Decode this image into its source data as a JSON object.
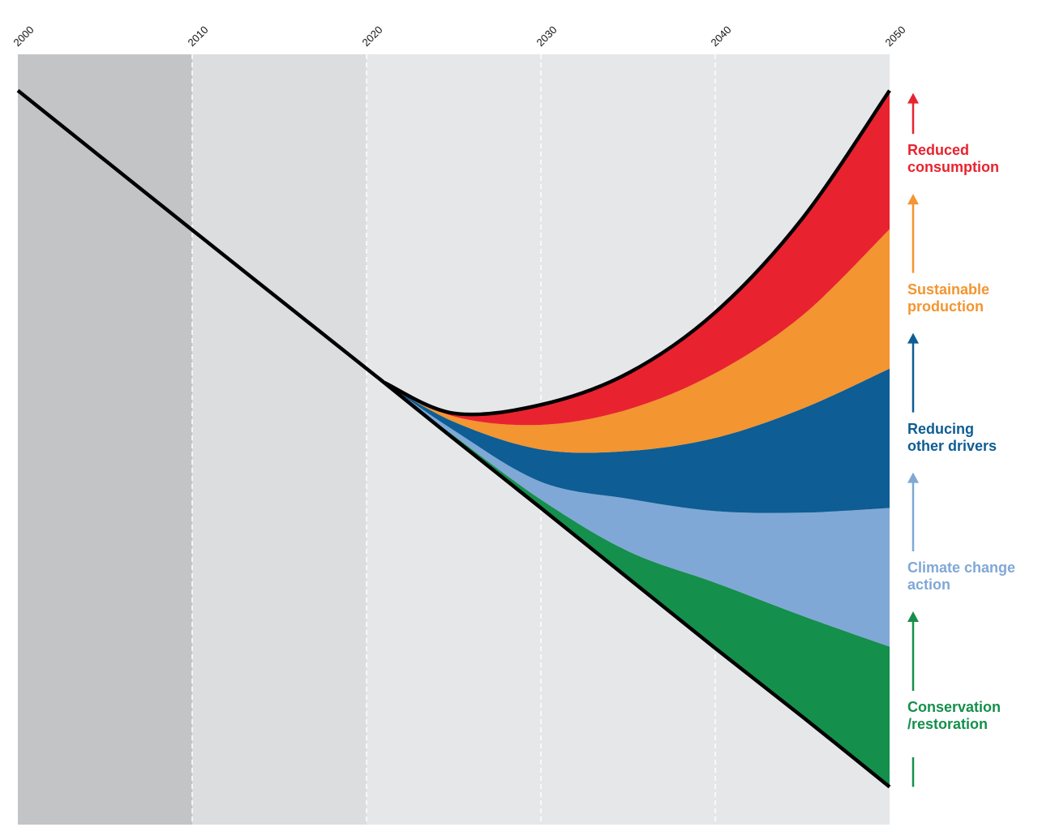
{
  "chart_data": {
    "type": "stacked_area",
    "x": [
      2000,
      2010,
      2020,
      2021,
      2025,
      2030,
      2035,
      2040,
      2045,
      2050
    ],
    "xlim": [
      2000,
      2050
    ],
    "xticks": [
      2000,
      2010,
      2020,
      2030,
      2040,
      2050
    ],
    "ylim": [
      0,
      100
    ],
    "baseline": {
      "color": "#000000",
      "values": [
        95.3,
        77.2,
        59.2,
        57.4,
        50.1,
        41.1,
        32.0,
        22.9,
        14.0,
        4.9
      ]
    },
    "series": [
      {
        "name": "Conservation\n/restoration",
        "color": "#158f4c",
        "values": [
          null,
          null,
          null,
          0,
          0.4,
          1.1,
          3.5,
          8.5,
          13.1,
          18.2
        ]
      },
      {
        "name": "Climate change\naction",
        "color": "#80a8d6",
        "values": [
          null,
          null,
          null,
          0,
          0.7,
          2.3,
          6.8,
          9.3,
          13.4,
          18.0
        ]
      },
      {
        "name": "Reducing\nother drivers",
        "color": "#0e5d95",
        "values": [
          null,
          null,
          null,
          0,
          1.1,
          4.2,
          6.2,
          9.5,
          13.5,
          18.1
        ]
      },
      {
        "name": "Sustainable\nproduction",
        "color": "#f39530",
        "values": [
          null,
          null,
          null,
          0,
          0.7,
          3.2,
          5.4,
          8.4,
          12.1,
          18.1
        ]
      },
      {
        "name": "Reduced\nconsumption",
        "color": "#e8232f",
        "values": [
          null,
          null,
          null,
          0,
          0.4,
          2.6,
          4.7,
          7.9,
          12.6,
          18.0
        ]
      }
    ]
  }
}
